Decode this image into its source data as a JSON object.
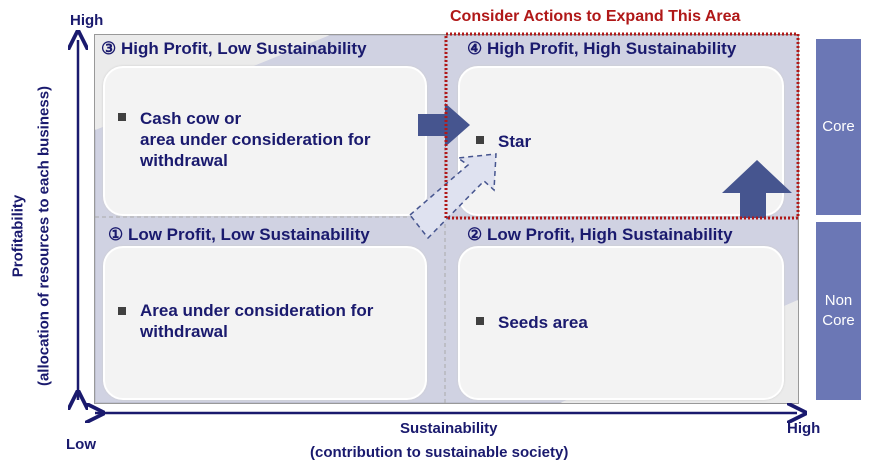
{
  "axes": {
    "y_high": "High",
    "y_title": "Profitability",
    "y_subtitle": "(allocation of resources to each  business)",
    "x_low": "Low",
    "x_high": "High",
    "x_title": "Sustainability",
    "x_subtitle": "(contribution to sustainable society)"
  },
  "callout": "Consider Actions to Expand This Area",
  "quadrants": [
    {
      "title": "① Low Profit, Low Sustainability",
      "item": "Area under consideration for withdrawal"
    },
    {
      "title": "② Low Profit, High Sustainability",
      "item": "Seeds area"
    },
    {
      "title": "③ High Profit, Low Sustainability",
      "item_lines": [
        "Cash cow or",
        "area under consideration for",
        "withdrawal"
      ]
    },
    {
      "title": "④ High Profit, High Sustainability",
      "item": "Star"
    }
  ],
  "side_bars": {
    "core": "Core",
    "non_core": "Non Core"
  },
  "colors": {
    "text": "#1a1a6e",
    "callout": "#b01818",
    "bar": "#6b77b5",
    "arrow": "#46558f"
  }
}
